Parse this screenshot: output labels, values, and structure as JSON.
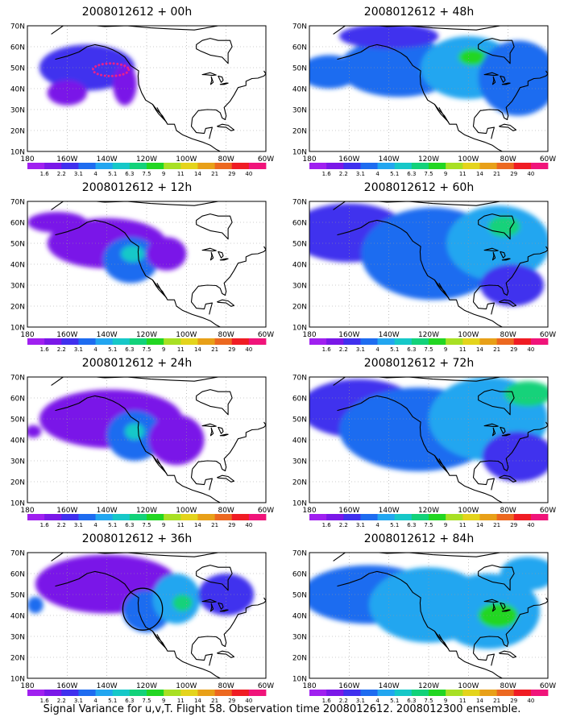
{
  "colorbar": {
    "labels": [
      "1.6",
      "2.2",
      "3.1",
      "4",
      "5.1",
      "6.3",
      "7.5",
      "9",
      "11",
      "14",
      "21",
      "29",
      "40"
    ],
    "colors": [
      "#a020f0",
      "#7a18e8",
      "#4030ee",
      "#1e6cf0",
      "#22a6f0",
      "#16c8c8",
      "#12d27a",
      "#22d622",
      "#a8e024",
      "#e4d41c",
      "#e8a018",
      "#ec6820",
      "#f01c24",
      "#f0147a"
    ]
  },
  "axes": {
    "x_ticks": [
      "180",
      "160W",
      "140W",
      "120W",
      "100W",
      "80W",
      "60W"
    ],
    "y_ticks": [
      "10N",
      "20N",
      "30N",
      "40N",
      "50N",
      "60N",
      "70N"
    ],
    "lon_range": [
      -180,
      -60
    ],
    "lat_range": [
      10,
      70
    ]
  },
  "chart_data": [
    {
      "type": "heatmap",
      "title": "2008012612 + 00h",
      "xlim": [
        -180,
        -60
      ],
      "ylim": [
        10,
        70
      ],
      "grid": true,
      "blobs": [
        {
          "lon": -150,
          "lat": 50,
          "rlon": 24,
          "rlat": 11,
          "level": 2
        },
        {
          "lon": -160,
          "lat": 38,
          "rlon": 10,
          "rlat": 6,
          "level": 1
        },
        {
          "lon": -131,
          "lat": 42,
          "rlon": 6,
          "rlat": 10,
          "level": 1
        }
      ],
      "dotted_region": {
        "lon": -138,
        "lat": 49,
        "rlon": 9,
        "rlat": 3
      }
    },
    {
      "type": "heatmap",
      "title": "2008012612 + 48h",
      "xlim": [
        -180,
        -60
      ],
      "ylim": [
        10,
        70
      ],
      "grid": true,
      "blobs": [
        {
          "lon": -170,
          "lat": 48,
          "rlon": 15,
          "rlat": 8,
          "level": 3
        },
        {
          "lon": -135,
          "lat": 50,
          "rlon": 30,
          "rlat": 14,
          "level": 3
        },
        {
          "lon": -100,
          "lat": 50,
          "rlon": 24,
          "rlat": 15,
          "level": 4
        },
        {
          "lon": -98,
          "lat": 55,
          "rlon": 7,
          "rlat": 4,
          "level": 7
        },
        {
          "lon": -75,
          "lat": 45,
          "rlon": 20,
          "rlat": 18,
          "level": 3
        },
        {
          "lon": -140,
          "lat": 65,
          "rlon": 25,
          "rlat": 6,
          "level": 2
        }
      ]
    },
    {
      "type": "heatmap",
      "title": "2008012612 + 12h",
      "xlim": [
        -180,
        -60
      ],
      "ylim": [
        10,
        70
      ],
      "grid": true,
      "blobs": [
        {
          "lon": -140,
          "lat": 50,
          "rlon": 30,
          "rlat": 12,
          "level": 1
        },
        {
          "lon": -128,
          "lat": 42,
          "rlon": 14,
          "rlat": 11,
          "level": 3
        },
        {
          "lon": -127,
          "lat": 45,
          "rlon": 6,
          "rlat": 4,
          "level": 5
        },
        {
          "lon": -110,
          "lat": 45,
          "rlon": 10,
          "rlat": 8,
          "level": 1
        },
        {
          "lon": -165,
          "lat": 60,
          "rlon": 15,
          "rlat": 5,
          "level": 1
        }
      ]
    },
    {
      "type": "heatmap",
      "title": "2008012612 + 60h",
      "xlim": [
        -180,
        -60
      ],
      "ylim": [
        10,
        70
      ],
      "grid": true,
      "blobs": [
        {
          "lon": -160,
          "lat": 55,
          "rlon": 30,
          "rlat": 14,
          "level": 2
        },
        {
          "lon": -118,
          "lat": 45,
          "rlon": 36,
          "rlat": 22,
          "level": 3
        },
        {
          "lon": -85,
          "lat": 50,
          "rlon": 26,
          "rlat": 18,
          "level": 4
        },
        {
          "lon": -82,
          "lat": 58,
          "rlon": 8,
          "rlat": 5,
          "level": 6
        },
        {
          "lon": -78,
          "lat": 30,
          "rlon": 16,
          "rlat": 10,
          "level": 2
        }
      ]
    },
    {
      "type": "heatmap",
      "title": "2008012612 + 24h",
      "xlim": [
        -180,
        -60
      ],
      "ylim": [
        10,
        70
      ],
      "grid": true,
      "blobs": [
        {
          "lon": -138,
          "lat": 50,
          "rlon": 36,
          "rlat": 14,
          "level": 1
        },
        {
          "lon": -126,
          "lat": 42,
          "rlon": 14,
          "rlat": 12,
          "level": 3
        },
        {
          "lon": -126,
          "lat": 44,
          "rlon": 5,
          "rlat": 4,
          "level": 5
        },
        {
          "lon": -105,
          "lat": 40,
          "rlon": 14,
          "rlat": 12,
          "level": 1
        },
        {
          "lon": -177,
          "lat": 44,
          "rlon": 4,
          "rlat": 3,
          "level": 1
        }
      ]
    },
    {
      "type": "heatmap",
      "title": "2008012612 + 72h",
      "xlim": [
        -180,
        -60
      ],
      "ylim": [
        10,
        70
      ],
      "grid": true,
      "blobs": [
        {
          "lon": -155,
          "lat": 55,
          "rlon": 30,
          "rlat": 14,
          "level": 2
        },
        {
          "lon": -125,
          "lat": 45,
          "rlon": 40,
          "rlat": 20,
          "level": 3
        },
        {
          "lon": -90,
          "lat": 50,
          "rlon": 30,
          "rlat": 20,
          "level": 4
        },
        {
          "lon": -70,
          "lat": 62,
          "rlon": 12,
          "rlat": 6,
          "level": 6
        },
        {
          "lon": -75,
          "lat": 32,
          "rlon": 18,
          "rlat": 12,
          "level": 2
        }
      ]
    },
    {
      "type": "heatmap",
      "title": "2008012612 + 36h",
      "xlim": [
        -180,
        -60
      ],
      "ylim": [
        10,
        70
      ],
      "grid": true,
      "blobs": [
        {
          "lon": -140,
          "lat": 55,
          "rlon": 36,
          "rlat": 14,
          "level": 1
        },
        {
          "lon": -120,
          "lat": 42,
          "rlon": 12,
          "rlat": 10,
          "level": 3
        },
        {
          "lon": -105,
          "lat": 48,
          "rlon": 12,
          "rlat": 12,
          "level": 4
        },
        {
          "lon": -102,
          "lat": 46,
          "rlon": 5,
          "rlat": 4,
          "level": 6
        },
        {
          "lon": -176,
          "lat": 45,
          "rlon": 4,
          "rlat": 4,
          "level": 3
        },
        {
          "lon": -80,
          "lat": 50,
          "rlon": 14,
          "rlat": 10,
          "level": 2
        }
      ],
      "circle": {
        "lon": -122,
        "lat": 43,
        "rlon": 10,
        "rlat": 10
      }
    },
    {
      "type": "heatmap",
      "title": "2008012612 + 84h",
      "xlim": [
        -180,
        -60
      ],
      "ylim": [
        10,
        70
      ],
      "grid": true,
      "blobs": [
        {
          "lon": -150,
          "lat": 50,
          "rlon": 34,
          "rlat": 14,
          "level": 3
        },
        {
          "lon": -120,
          "lat": 45,
          "rlon": 30,
          "rlat": 18,
          "level": 4
        },
        {
          "lon": -90,
          "lat": 42,
          "rlon": 26,
          "rlat": 18,
          "level": 4
        },
        {
          "lon": -85,
          "lat": 40,
          "rlon": 10,
          "rlat": 6,
          "level": 7
        },
        {
          "lon": -70,
          "lat": 60,
          "rlon": 14,
          "rlat": 8,
          "level": 4
        }
      ]
    }
  ],
  "caption": "Signal Variance for u,v,T. Flight 58. Observation time 2008012612. 2008012300 ensemble."
}
